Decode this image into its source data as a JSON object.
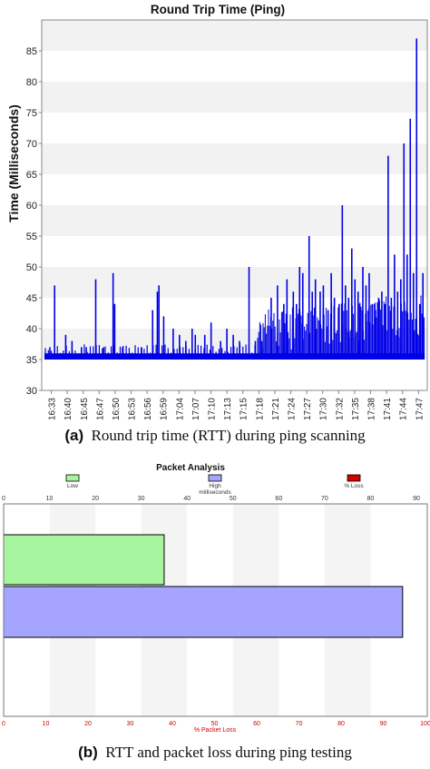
{
  "chart_data": [
    {
      "type": "line",
      "title": "Round Trip Time (Ping)",
      "xlabel": "",
      "ylabel": "Time (Milliseconds)",
      "ylim": [
        30,
        90
      ],
      "yticks": [
        30,
        35,
        40,
        45,
        50,
        55,
        60,
        65,
        70,
        75,
        80,
        85
      ],
      "x_tick_labels": [
        "16:33",
        "16:40",
        "16:45",
        "16:47",
        "16:50",
        "16:53",
        "16:56",
        "16:59",
        "17:04",
        "17:07",
        "17:10",
        "17:13",
        "17:15",
        "17:18",
        "17:21",
        "17:24",
        "17:27",
        "17:30",
        "17:32",
        "17:35",
        "17:38",
        "17:41",
        "17:44",
        "17:47"
      ],
      "grid": "horizontal bands",
      "series_color": "#0000e6",
      "baseline": 35,
      "spikes": [
        [
          0.02,
          37
        ],
        [
          0.035,
          47
        ],
        [
          0.07,
          39
        ],
        [
          0.09,
          38
        ],
        [
          0.12,
          37
        ],
        [
          0.135,
          37
        ],
        [
          0.165,
          48
        ],
        [
          0.19,
          37
        ],
        [
          0.22,
          49
        ],
        [
          0.225,
          44
        ],
        [
          0.25,
          37
        ],
        [
          0.275,
          36
        ],
        [
          0.31,
          37
        ],
        [
          0.33,
          36
        ],
        [
          0.345,
          43
        ],
        [
          0.36,
          46
        ],
        [
          0.365,
          47
        ],
        [
          0.38,
          42
        ],
        [
          0.41,
          40
        ],
        [
          0.43,
          39
        ],
        [
          0.45,
          38
        ],
        [
          0.47,
          40
        ],
        [
          0.48,
          39
        ],
        [
          0.51,
          39
        ],
        [
          0.53,
          41
        ],
        [
          0.56,
          38
        ],
        [
          0.58,
          40
        ],
        [
          0.6,
          39
        ],
        [
          0.62,
          38
        ],
        [
          0.65,
          50
        ],
        [
          0.67,
          38
        ],
        [
          0.69,
          38
        ],
        [
          0.72,
          45
        ],
        [
          0.74,
          47
        ],
        [
          0.76,
          44
        ],
        [
          0.77,
          48
        ],
        [
          0.79,
          46
        ],
        [
          0.8,
          44
        ],
        [
          0.81,
          50
        ],
        [
          0.82,
          49
        ],
        [
          0.84,
          55
        ],
        [
          0.85,
          46
        ],
        [
          0.86,
          48
        ],
        [
          0.875,
          46
        ],
        [
          0.885,
          47
        ],
        [
          0.9,
          43
        ],
        [
          0.91,
          49
        ],
        [
          0.92,
          45
        ],
        [
          0.935,
          44
        ],
        [
          0.945,
          60
        ],
        [
          0.955,
          47
        ],
        [
          0.965,
          45
        ],
        [
          0.975,
          53
        ],
        [
          0.985,
          48
        ],
        [
          0.995,
          46
        ],
        [
          1.0,
          44
        ],
        [
          1.01,
          50
        ],
        [
          1.02,
          47
        ],
        [
          1.03,
          49
        ],
        [
          1.04,
          44
        ],
        [
          1.05,
          43
        ],
        [
          1.06,
          45
        ],
        [
          1.07,
          46
        ],
        [
          1.08,
          44
        ],
        [
          1.09,
          68
        ],
        [
          1.1,
          45
        ],
        [
          1.11,
          52
        ],
        [
          1.12,
          46
        ],
        [
          1.13,
          48
        ],
        [
          1.14,
          70
        ],
        [
          1.15,
          52
        ],
        [
          1.16,
          74
        ],
        [
          1.17,
          49
        ],
        [
          1.18,
          87
        ],
        [
          1.19,
          44
        ],
        [
          1.2,
          49
        ]
      ]
    },
    {
      "type": "bar",
      "orientation": "horizontal",
      "title": "Packet Analysis",
      "legend": [
        {
          "name": "Low",
          "color": "#a8f5a0"
        },
        {
          "name": "High milliseconds",
          "color": "#a5a5ff"
        },
        {
          "name": "% Loss",
          "color": "#d40000"
        }
      ],
      "top_axis_ticks": [
        "0",
        "10",
        "20",
        "30",
        "40",
        "50",
        "60",
        "70",
        "80",
        "90"
      ],
      "top_axis_range": [
        0,
        90
      ],
      "bottom_axis_ticks": [
        "0",
        "10",
        "20",
        "30",
        "40",
        "50",
        "60",
        "70",
        "80",
        "90",
        "100"
      ],
      "bottom_axis_range": [
        0,
        100
      ],
      "bottom_axis_label": "% Packet Loss",
      "series": [
        {
          "name": "Low",
          "value": 35
        },
        {
          "name": "High milliseconds",
          "value": 87
        },
        {
          "name": "% Loss",
          "value": 0
        }
      ]
    }
  ],
  "captions": {
    "a_label": "(a)",
    "a_text": "Round trip time (RTT) during ping scanning",
    "b_label": "(b)",
    "b_text": "RTT and packet loss during ping testing"
  }
}
